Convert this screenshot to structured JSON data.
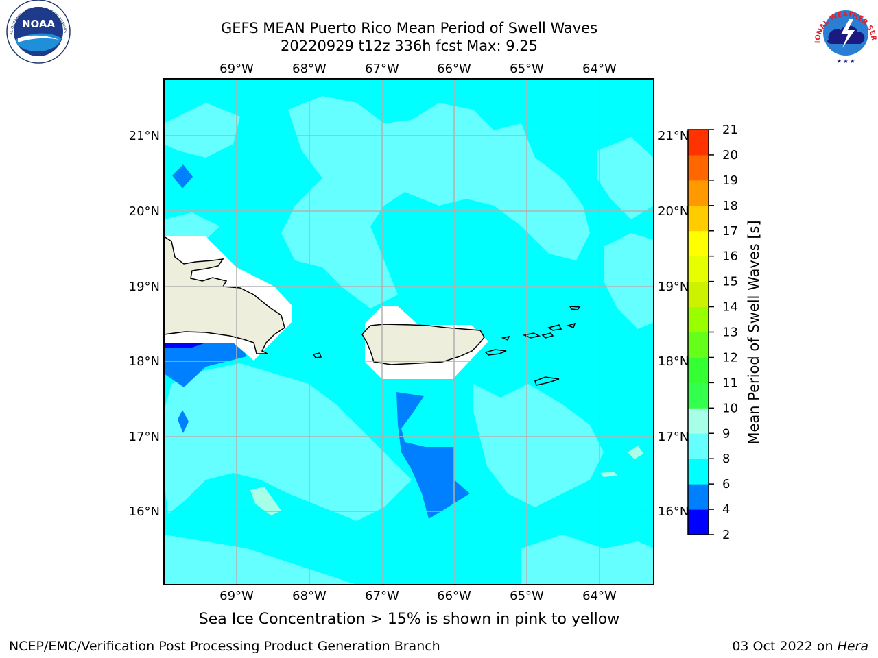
{
  "title_line1": "GEFS MEAN Puerto Rico Mean Period of Swell Waves",
  "title_line2": "20220929 t12z 336h fcst   Max: 9.25",
  "lon_labels": [
    "69°W",
    "68°W",
    "67°W",
    "66°W",
    "65°W",
    "64°W"
  ],
  "lat_labels": [
    "21°N",
    "20°N",
    "19°N",
    "18°N",
    "17°N",
    "16°N"
  ],
  "colorbar": {
    "label": "Mean Period of Swell Waves [s]",
    "ticks": [
      "2",
      "4",
      "6",
      "8",
      "9",
      "10",
      "11",
      "12",
      "13",
      "14",
      "15",
      "16",
      "17",
      "18",
      "19",
      "20",
      "21"
    ],
    "colors": [
      "#0000ff",
      "#0080ff",
      "#00ffff",
      "#66ffff",
      "#a6ffe6",
      "#33ff4d",
      "#33ff33",
      "#66ff1a",
      "#99ff00",
      "#ccf200",
      "#e6ff00",
      "#ffff00",
      "#ffcc00",
      "#ff9900",
      "#ff6600",
      "#ff3300",
      "#ff0000"
    ]
  },
  "subtitle": "Sea Ice Concentration > 15% is shown in pink to yellow",
  "credit_left": "NCEP/EMC/Verification Post Processing Product Generation Branch",
  "credit_date": "03 Oct 2022 on",
  "credit_host": "Hera",
  "logos": {
    "noaa_text": "NOAA",
    "noaa_ring": "NATIONAL OCEANIC AND ATMOSPHERIC ADMINISTRATION",
    "nws_ring": "NATIONAL WEATHER SERVICE"
  },
  "map_colors": {
    "ocean_base": "#00ffff",
    "ocean_light": "#66ffff",
    "ocean_dark": "#0080ff",
    "ocean_deep": "#0000ff",
    "land": "#eeeedc",
    "mask": "#ffffff",
    "grid": "#b0b0b0"
  }
}
